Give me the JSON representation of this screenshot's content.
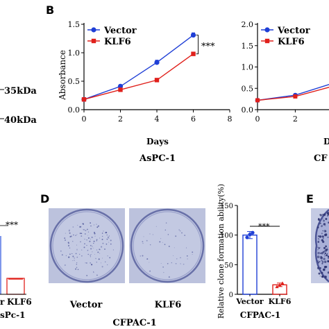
{
  "panels": {
    "b": "B",
    "d": "D",
    "e": "E"
  },
  "partial_texts": {
    "kda_35": "35kDa",
    "kda_40": "40kDa",
    "panel_c_sig": "***",
    "panel_c_x1": "r",
    "panel_c_x2": "KLF6",
    "panel_c_caption": "sPc-1",
    "panel_b2_xlabel": "D",
    "panel_b2_caption": "CF"
  },
  "colony_photos": {
    "captions": [
      "Vector",
      "KLF6"
    ],
    "title": "CFPAC-1"
  },
  "chart_data": [
    {
      "id": "aspc1-growth",
      "type": "line",
      "title": "AsPC-1",
      "xlabel": "Days",
      "ylabel": "Absorbance",
      "x": [
        0,
        2,
        4,
        6
      ],
      "xlim": [
        0,
        8
      ],
      "xticks": [
        "0",
        "2",
        "4",
        "6",
        "8"
      ],
      "ylim": [
        0,
        1.5
      ],
      "yticks": [
        "0.0",
        "0.5",
        "1.0",
        "1.5"
      ],
      "legend": "top-left",
      "significance": "***",
      "series": [
        {
          "name": "Vector",
          "color": "#1f3fd6",
          "marker": "circle",
          "values": [
            0.18,
            0.41,
            0.83,
            1.31
          ],
          "errors": [
            0.02,
            0.03,
            0.04,
            0.04
          ]
        },
        {
          "name": "KLF6",
          "color": "#e0201b",
          "marker": "square",
          "values": [
            0.18,
            0.35,
            0.52,
            0.98
          ],
          "errors": [
            0.01,
            0.02,
            0.02,
            0.02
          ]
        }
      ]
    },
    {
      "id": "cfpac1-growth",
      "type": "line",
      "x": [
        0,
        2,
        4
      ],
      "xticks": [
        "0",
        "2"
      ],
      "ylim": [
        0,
        2.0
      ],
      "yticks": [
        "0.0",
        "0.5",
        "1.0",
        "1.5",
        "2.0"
      ],
      "legend": "top-left",
      "series": [
        {
          "name": "Vector",
          "color": "#1f3fd6",
          "marker": "circle",
          "values": [
            0.22,
            0.34,
            0.62
          ]
        },
        {
          "name": "KLF6",
          "color": "#e0201b",
          "marker": "square",
          "values": [
            0.22,
            0.31,
            0.55
          ]
        }
      ]
    },
    {
      "id": "cfpac1-clone",
      "type": "bar",
      "title": "CFPAC-1",
      "ylabel": "Relative clone formation ability(%)",
      "categories": [
        "Vector",
        "KLF6"
      ],
      "ylim": [
        0,
        150
      ],
      "yticks": [
        "0",
        "50",
        "100",
        "150"
      ],
      "significance": "***",
      "series": [
        {
          "name": "",
          "values": [
            100,
            16
          ],
          "errors": [
            6,
            3
          ],
          "colors": [
            "#1f3fd6",
            "#e0201b"
          ]
        }
      ],
      "points": [
        [
          96,
          101,
          104
        ],
        [
          13,
          16,
          19
        ]
      ]
    }
  ]
}
